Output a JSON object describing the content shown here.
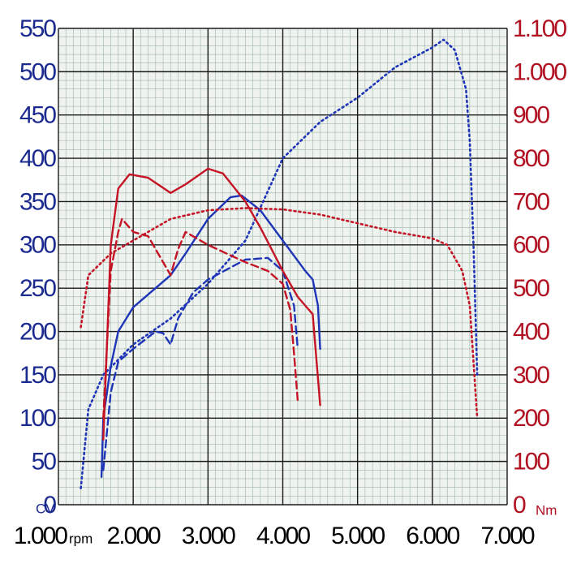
{
  "chart_data": {
    "type": "line",
    "x_unit": "rpm",
    "y_unit": "CV",
    "y2_unit": "Nm",
    "xlim": [
      1000,
      7000
    ],
    "xticks": [
      {
        "value": 1000,
        "label": "1.000"
      },
      {
        "value": 2000,
        "label": "2.000"
      },
      {
        "value": 3000,
        "label": "3.000"
      },
      {
        "value": 4000,
        "label": "4.000"
      },
      {
        "value": 5000,
        "label": "5.000"
      },
      {
        "value": 6000,
        "label": "6.000"
      },
      {
        "value": 7000,
        "label": "7.000"
      }
    ],
    "ylim": [
      0,
      550
    ],
    "yticks": [
      0,
      50,
      100,
      150,
      200,
      250,
      300,
      350,
      400,
      450,
      500,
      550
    ],
    "y2lim": [
      0,
      1100
    ],
    "y2ticks": [
      0,
      100,
      200,
      300,
      400,
      500,
      600,
      700,
      800,
      900,
      {
        "value": 1000,
        "label": "1.000"
      },
      {
        "value": 1100,
        "label": "1.100"
      }
    ],
    "grid": true,
    "minor_grid_step": {
      "x": 100,
      "y": 10
    },
    "series": [
      {
        "color": "#1f35b8",
        "dash": "dot",
        "x": [
          1300,
          1400,
          1600,
          2000,
          2500,
          3000,
          3500,
          4000,
          4500,
          5000,
          5500,
          6000,
          6150,
          6300,
          6450,
          6500,
          6550,
          6600
        ],
        "values": [
          19,
          110,
          150,
          185,
          215,
          255,
          305,
          400,
          442,
          470,
          505,
          528,
          537,
          525,
          480,
          420,
          300,
          150
        ]
      },
      {
        "color": "#1f35b8",
        "dash": "solid",
        "x": [
          1576,
          1600,
          1700,
          1800,
          2000,
          2500,
          2700,
          3000,
          3300,
          3450,
          3700,
          4000,
          4300,
          4400,
          4470,
          4500
        ],
        "values": [
          32,
          100,
          160,
          200,
          228,
          265,
          290,
          330,
          355,
          357,
          340,
          305,
          270,
          260,
          230,
          180
        ]
      },
      {
        "color": "#1f35b8",
        "dash": "dash",
        "x": [
          1600,
          1700,
          1800,
          2000,
          2300,
          2400,
          2500,
          2600,
          2800,
          3000,
          3500,
          3800,
          4000,
          4150,
          4200
        ],
        "values": [
          40,
          130,
          165,
          180,
          200,
          198,
          185,
          215,
          245,
          260,
          283,
          285,
          270,
          230,
          180
        ]
      },
      {
        "color": "#c41425",
        "dash": "solid",
        "axis": "y2",
        "x": [
          1600,
          1700,
          1800,
          1950,
          2200,
          2500,
          2700,
          3000,
          3200,
          3500,
          3700,
          4000,
          4200,
          4400,
          4500
        ],
        "values": [
          150,
          600,
          730,
          763,
          755,
          720,
          740,
          776,
          765,
          700,
          640,
          540,
          480,
          440,
          230
        ]
      },
      {
        "color": "#c41425",
        "dash": "dash",
        "axis": "y2",
        "x": [
          1600,
          1700,
          1800,
          1850,
          2000,
          2200,
          2500,
          2600,
          2700,
          3000,
          3500,
          3800,
          4000,
          4100,
          4150,
          4200
        ],
        "values": [
          200,
          540,
          630,
          660,
          630,
          620,
          530,
          590,
          630,
          600,
          560,
          540,
          510,
          450,
          350,
          240
        ]
      },
      {
        "color": "#c41425",
        "dash": "dot",
        "axis": "y2",
        "x": [
          1300,
          1400,
          1700,
          2000,
          2500,
          3000,
          3500,
          4000,
          4500,
          5000,
          5500,
          6000,
          6200,
          6400,
          6500,
          6600
        ],
        "values": [
          410,
          530,
          580,
          610,
          660,
          680,
          685,
          682,
          670,
          650,
          630,
          615,
          600,
          540,
          460,
          200
        ]
      }
    ]
  }
}
